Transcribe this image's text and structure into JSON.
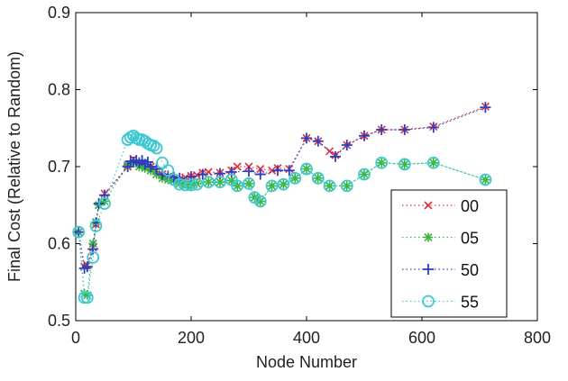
{
  "chart_data": {
    "type": "line",
    "title": "",
    "xlabel": "Node Number",
    "ylabel": "Final Cost (Relative to Random)",
    "xlim": [
      0,
      800
    ],
    "ylim": [
      0.5,
      0.9
    ],
    "x_ticks": [
      "0",
      "200",
      "400",
      "600",
      "800"
    ],
    "y_ticks": [
      "0.5",
      "0.6",
      "0.7",
      "0.8",
      "0.9"
    ],
    "grid": false,
    "legend_position": "bottom-right",
    "series": [
      {
        "name": "00",
        "color": "#e0303a",
        "marker": "x",
        "line": "dotted",
        "points": [
          [
            5,
            0.615
          ],
          [
            15,
            0.57
          ],
          [
            20,
            0.572
          ],
          [
            30,
            0.595
          ],
          [
            35,
            0.625
          ],
          [
            40,
            0.65
          ],
          [
            50,
            0.665
          ],
          [
            90,
            0.7
          ],
          [
            100,
            0.71
          ],
          [
            110,
            0.705
          ],
          [
            120,
            0.702
          ],
          [
            130,
            0.7
          ],
          [
            140,
            0.695
          ],
          [
            150,
            0.69
          ],
          [
            160,
            0.687
          ],
          [
            170,
            0.685
          ],
          [
            180,
            0.684
          ],
          [
            190,
            0.686
          ],
          [
            200,
            0.688
          ],
          [
            210,
            0.689
          ],
          [
            220,
            0.692
          ],
          [
            230,
            0.693
          ],
          [
            250,
            0.692
          ],
          [
            270,
            0.695
          ],
          [
            280,
            0.7
          ],
          [
            300,
            0.7
          ],
          [
            320,
            0.697
          ],
          [
            340,
            0.695
          ],
          [
            350,
            0.698
          ],
          [
            370,
            0.697
          ],
          [
            400,
            0.737
          ],
          [
            420,
            0.733
          ],
          [
            440,
            0.72
          ],
          [
            450,
            0.715
          ],
          [
            470,
            0.728
          ],
          [
            500,
            0.74
          ],
          [
            530,
            0.748
          ],
          [
            570,
            0.748
          ],
          [
            620,
            0.752
          ],
          [
            710,
            0.778
          ]
        ]
      },
      {
        "name": "05",
        "color": "#3cb43c",
        "marker": "*",
        "line": "dotted",
        "points": [
          [
            5,
            0.615
          ],
          [
            15,
            0.535
          ],
          [
            20,
            0.533
          ],
          [
            30,
            0.6
          ],
          [
            35,
            0.628
          ],
          [
            40,
            0.65
          ],
          [
            50,
            0.655
          ],
          [
            90,
            0.702
          ],
          [
            100,
            0.705
          ],
          [
            110,
            0.7
          ],
          [
            120,
            0.698
          ],
          [
            130,
            0.695
          ],
          [
            140,
            0.69
          ],
          [
            150,
            0.685
          ],
          [
            160,
            0.683
          ],
          [
            170,
            0.682
          ],
          [
            180,
            0.678
          ],
          [
            190,
            0.677
          ],
          [
            200,
            0.676
          ],
          [
            210,
            0.678
          ],
          [
            230,
            0.68
          ],
          [
            250,
            0.68
          ],
          [
            270,
            0.682
          ],
          [
            280,
            0.675
          ],
          [
            300,
            0.678
          ],
          [
            310,
            0.66
          ],
          [
            320,
            0.655
          ],
          [
            340,
            0.675
          ],
          [
            360,
            0.677
          ],
          [
            380,
            0.685
          ],
          [
            400,
            0.697
          ],
          [
            420,
            0.685
          ],
          [
            440,
            0.675
          ],
          [
            470,
            0.675
          ],
          [
            500,
            0.69
          ],
          [
            530,
            0.705
          ],
          [
            570,
            0.703
          ],
          [
            620,
            0.705
          ],
          [
            710,
            0.683
          ]
        ]
      },
      {
        "name": "50",
        "color": "#2a3fbf",
        "marker": "+",
        "line": "dotted",
        "points": [
          [
            5,
            0.615
          ],
          [
            15,
            0.568
          ],
          [
            20,
            0.57
          ],
          [
            30,
            0.593
          ],
          [
            35,
            0.627
          ],
          [
            40,
            0.652
          ],
          [
            50,
            0.663
          ],
          [
            90,
            0.7
          ],
          [
            95,
            0.707
          ],
          [
            100,
            0.706
          ],
          [
            105,
            0.708
          ],
          [
            110,
            0.705
          ],
          [
            115,
            0.708
          ],
          [
            120,
            0.703
          ],
          [
            125,
            0.706
          ],
          [
            130,
            0.7
          ],
          [
            140,
            0.697
          ],
          [
            150,
            0.69
          ],
          [
            160,
            0.688
          ],
          [
            170,
            0.686
          ],
          [
            180,
            0.685
          ],
          [
            200,
            0.687
          ],
          [
            220,
            0.69
          ],
          [
            250,
            0.691
          ],
          [
            270,
            0.693
          ],
          [
            300,
            0.694
          ],
          [
            320,
            0.69
          ],
          [
            350,
            0.695
          ],
          [
            370,
            0.695
          ],
          [
            400,
            0.737
          ],
          [
            420,
            0.733
          ],
          [
            450,
            0.713
          ],
          [
            470,
            0.728
          ],
          [
            500,
            0.74
          ],
          [
            530,
            0.748
          ],
          [
            570,
            0.748
          ],
          [
            620,
            0.751
          ],
          [
            710,
            0.777
          ]
        ]
      },
      {
        "name": "55",
        "color": "#40c8d2",
        "marker": "o",
        "line": "dotted",
        "points": [
          [
            5,
            0.615
          ],
          [
            15,
            0.53
          ],
          [
            20,
            0.53
          ],
          [
            30,
            0.582
          ],
          [
            35,
            0.623
          ],
          [
            50,
            0.652
          ],
          [
            90,
            0.735
          ],
          [
            95,
            0.738
          ],
          [
            100,
            0.74
          ],
          [
            105,
            0.737
          ],
          [
            110,
            0.735
          ],
          [
            115,
            0.735
          ],
          [
            120,
            0.733
          ],
          [
            125,
            0.73
          ],
          [
            130,
            0.728
          ],
          [
            135,
            0.727
          ],
          [
            140,
            0.724
          ],
          [
            150,
            0.705
          ],
          [
            160,
            0.695
          ],
          [
            170,
            0.683
          ],
          [
            180,
            0.677
          ],
          [
            190,
            0.676
          ],
          [
            200,
            0.676
          ],
          [
            210,
            0.677
          ],
          [
            230,
            0.68
          ],
          [
            250,
            0.68
          ],
          [
            270,
            0.683
          ],
          [
            280,
            0.675
          ],
          [
            300,
            0.678
          ],
          [
            310,
            0.66
          ],
          [
            320,
            0.655
          ],
          [
            340,
            0.675
          ],
          [
            360,
            0.677
          ],
          [
            380,
            0.685
          ],
          [
            400,
            0.697
          ],
          [
            420,
            0.685
          ],
          [
            440,
            0.675
          ],
          [
            470,
            0.675
          ],
          [
            500,
            0.69
          ],
          [
            530,
            0.705
          ],
          [
            570,
            0.703
          ],
          [
            620,
            0.705
          ],
          [
            710,
            0.683
          ]
        ]
      }
    ]
  }
}
